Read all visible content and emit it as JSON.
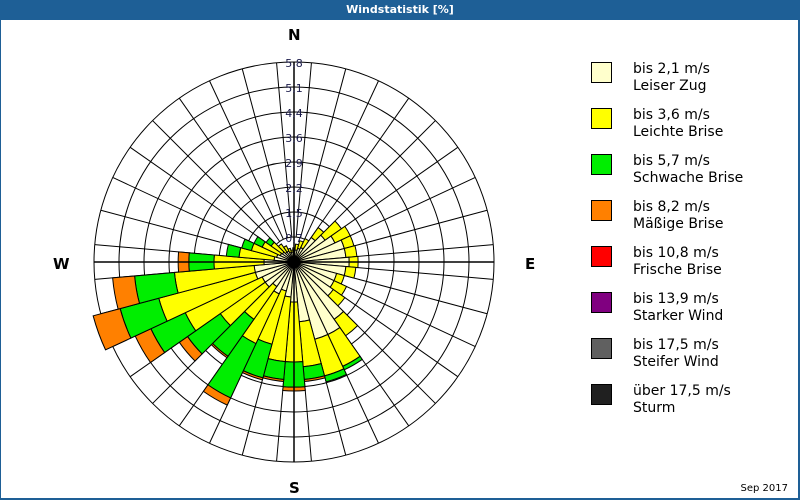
{
  "window": {
    "title": "Windstatistik [%]"
  },
  "compass": {
    "n": "N",
    "e": "E",
    "s": "S",
    "w": "W"
  },
  "footer": {
    "date": "Sep 2017"
  },
  "legend": [
    {
      "line1": "bis 2,1 m/s",
      "line2": "Leiser Zug",
      "color": "#ffffcc"
    },
    {
      "line1": "bis 3,6 m/s",
      "line2": "Leichte Brise",
      "color": "#ffff00"
    },
    {
      "line1": "bis 5,7 m/s",
      "line2": "Schwache Brise",
      "color": "#00ee00"
    },
    {
      "line1": "bis 8,2 m/s",
      "line2": "Mäßige Brise",
      "color": "#ff8000"
    },
    {
      "line1": "bis 10,8 m/s",
      "line2": "Frische Brise",
      "color": "#ff0000"
    },
    {
      "line1": "bis 13,9 m/s",
      "line2": "Starker Wind",
      "color": "#800080"
    },
    {
      "line1": "bis 17,5 m/s",
      "line2": "Steifer Wind",
      "color": "#606060"
    },
    {
      "line1": "über 17,5 m/s",
      "line2": "Sturm",
      "color": "#202020"
    }
  ],
  "chart_data": {
    "type": "wind_rose",
    "title": "Windstatistik [%]",
    "radial_ticks": [
      "0,7",
      "1,5",
      "2,2",
      "2,9",
      "3,6",
      "4,4",
      "5,1",
      "5,8"
    ],
    "radial_max": 5.8,
    "grid": true,
    "legend_position": "right",
    "sector_width_deg": 10,
    "series_names": [
      "bis 2,1 m/s",
      "bis 3,6 m/s",
      "bis 5,7 m/s",
      "bis 8,2 m/s",
      "bis 10,8 m/s",
      "bis 13,9 m/s",
      "bis 17,5 m/s",
      "über 17,5 m/s"
    ],
    "series_colors": [
      "#ffffcc",
      "#ffff00",
      "#00ee00",
      "#ff8000",
      "#ff0000",
      "#800080",
      "#606060",
      "#202020"
    ],
    "note": "cumulative percentages per direction (outer edge of each band)",
    "sectors": [
      {
        "dir": 0,
        "cum": [
          0.29,
          0.41
        ]
      },
      {
        "dir": 10,
        "cum": [
          0.35,
          0.52
        ]
      },
      {
        "dir": 20,
        "cum": [
          0.41,
          0.64
        ]
      },
      {
        "dir": 30,
        "cum": [
          0.46,
          0.75
        ]
      },
      {
        "dir": 40,
        "cum": [
          0.87,
          1.22
        ]
      },
      {
        "dir": 50,
        "cum": [
          1.1,
          1.68
        ]
      },
      {
        "dir": 60,
        "cum": [
          1.31,
          1.8
        ]
      },
      {
        "dir": 70,
        "cum": [
          1.51,
          1.8
        ]
      },
      {
        "dir": 80,
        "cum": [
          1.51,
          1.83
        ]
      },
      {
        "dir": 90,
        "cum": [
          1.6,
          1.86
        ]
      },
      {
        "dir": 100,
        "cum": [
          1.51,
          1.8
        ]
      },
      {
        "dir": 110,
        "cum": [
          1.28,
          1.51
        ]
      },
      {
        "dir": 120,
        "cum": [
          1.28,
          1.68
        ]
      },
      {
        "dir": 130,
        "cum": [
          1.39,
          1.8
        ]
      },
      {
        "dir": 140,
        "cum": [
          2.03,
          2.61
        ]
      },
      {
        "dir": 150,
        "cum": [
          2.32,
          3.34,
          3.45
        ]
      },
      {
        "dir": 160,
        "cum": [
          2.32,
          3.42,
          3.6
        ]
      },
      {
        "dir": 170,
        "cum": [
          1.74,
          3.05,
          3.42,
          3.48
        ]
      },
      {
        "dir": 180,
        "cum": [
          1.16,
          2.9,
          3.63,
          3.74
        ]
      },
      {
        "dir": 190,
        "cum": [
          1.02,
          2.9,
          3.42,
          3.48
        ]
      },
      {
        "dir": 200,
        "cum": [
          0.87,
          2.47,
          3.48,
          3.54
        ]
      },
      {
        "dir": 210,
        "cum": [
          1.02,
          2.61,
          4.35,
          4.58
        ]
      },
      {
        "dir": 220,
        "cum": [
          0.87,
          2.03,
          3.34,
          3.39
        ]
      },
      {
        "dir": 230,
        "cum": [
          1.02,
          2.61,
          3.77,
          4.06
        ]
      },
      {
        "dir": 240,
        "cum": [
          1.02,
          3.48,
          4.58,
          5.08
        ]
      },
      {
        "dir": 250,
        "cum": [
          1.16,
          4.06,
          5.22,
          6.03
        ]
      },
      {
        "dir": 260,
        "cum": [
          1.16,
          3.48,
          4.64,
          5.28
        ]
      },
      {
        "dir": 270,
        "cum": [
          0.87,
          2.32,
          3.05,
          3.36
        ]
      },
      {
        "dir": 280,
        "cum": [
          0.58,
          1.6,
          1.97
        ]
      },
      {
        "dir": 290,
        "cum": [
          0.52,
          1.28,
          1.57
        ]
      },
      {
        "dir": 300,
        "cum": [
          0.44,
          1.02,
          1.28
        ]
      },
      {
        "dir": 310,
        "cum": [
          0.41,
          0.81,
          0.99
        ]
      },
      {
        "dir": 320,
        "cum": [
          0.35,
          0.64
        ]
      },
      {
        "dir": 330,
        "cum": [
          0.35,
          0.52
        ]
      },
      {
        "dir": 340,
        "cum": [
          0.29,
          0.41
        ]
      },
      {
        "dir": 350,
        "cum": [
          0.29,
          0.35
        ]
      }
    ]
  }
}
